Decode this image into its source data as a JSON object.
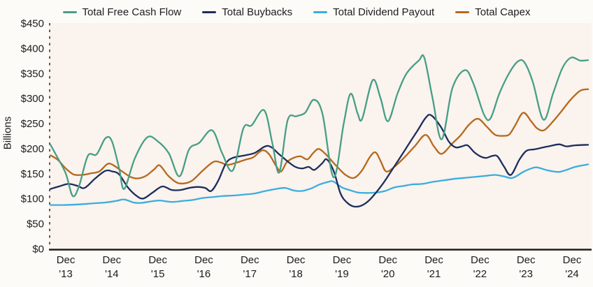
{
  "y_axis": {
    "title": "Billions",
    "tick_labels": [
      "$450",
      "$400",
      "$350",
      "$300",
      "$250",
      "$200",
      "$150",
      "$100",
      "$50",
      "$0"
    ],
    "tick_values": [
      450,
      400,
      350,
      300,
      250,
      200,
      150,
      100,
      50,
      0
    ]
  },
  "x_axis": {
    "tick_top": "Dec",
    "tick_years": [
      "'13",
      "'14",
      "'15",
      "'16",
      "'17",
      "'18",
      "'19",
      "'20",
      "'21",
      "'22",
      "'23",
      "'24"
    ],
    "tick_start_decimal_year": 2013.92,
    "tick_step_years": 1
  },
  "colors": {
    "plot_background": "#faf3ee",
    "axis": "#1c1c1c",
    "text": "#1c1c1c"
  },
  "chart_data": {
    "type": "line",
    "title": "",
    "xlabel": "",
    "ylabel": "Billions",
    "ylim": [
      0,
      450
    ],
    "x_range_decimal_years": [
      2013.57,
      2025.3
    ],
    "x_tick_labels": [
      "Dec '13",
      "Dec '14",
      "Dec '15",
      "Dec '16",
      "Dec '17",
      "Dec '18",
      "Dec '19",
      "Dec '20",
      "Dec '21",
      "Dec '22",
      "Dec '23",
      "Dec '24"
    ],
    "grid": false,
    "legend_position": "top",
    "units": "USD billions, quarterly",
    "series": [
      {
        "name": "Total Free Cash Flow",
        "color": "#479e86",
        "points": [
          [
            2013.59,
            207
          ],
          [
            2013.72,
            185
          ],
          [
            2013.92,
            150
          ],
          [
            2014.07,
            105
          ],
          [
            2014.21,
            125
          ],
          [
            2014.4,
            185
          ],
          [
            2014.59,
            188
          ],
          [
            2014.78,
            220
          ],
          [
            2014.92,
            215
          ],
          [
            2015.08,
            160
          ],
          [
            2015.19,
            119
          ],
          [
            2015.42,
            180
          ],
          [
            2015.69,
            222
          ],
          [
            2015.92,
            214
          ],
          [
            2016.16,
            190
          ],
          [
            2016.39,
            144
          ],
          [
            2016.6,
            198
          ],
          [
            2016.82,
            211
          ],
          [
            2017.1,
            236
          ],
          [
            2017.32,
            190
          ],
          [
            2017.55,
            156
          ],
          [
            2017.78,
            240
          ],
          [
            2017.96,
            246
          ],
          [
            2018.23,
            276
          ],
          [
            2018.41,
            210
          ],
          [
            2018.56,
            152
          ],
          [
            2018.74,
            256
          ],
          [
            2018.93,
            264
          ],
          [
            2019.12,
            271
          ],
          [
            2019.31,
            297
          ],
          [
            2019.5,
            268
          ],
          [
            2019.74,
            142
          ],
          [
            2019.96,
            250
          ],
          [
            2020.11,
            309
          ],
          [
            2020.26,
            270
          ],
          [
            2020.36,
            259
          ],
          [
            2020.59,
            336
          ],
          [
            2020.76,
            300
          ],
          [
            2020.92,
            254
          ],
          [
            2021.13,
            310
          ],
          [
            2021.33,
            350
          ],
          [
            2021.59,
            375
          ],
          [
            2021.71,
            381
          ],
          [
            2021.89,
            300
          ],
          [
            2022.09,
            218
          ],
          [
            2022.32,
            320
          ],
          [
            2022.59,
            356
          ],
          [
            2022.77,
            331
          ],
          [
            2023.01,
            267
          ],
          [
            2023.15,
            260
          ],
          [
            2023.34,
            309
          ],
          [
            2023.56,
            351
          ],
          [
            2023.75,
            374
          ],
          [
            2023.89,
            371
          ],
          [
            2024.07,
            332
          ],
          [
            2024.3,
            257
          ],
          [
            2024.51,
            310
          ],
          [
            2024.71,
            360
          ],
          [
            2024.9,
            381
          ],
          [
            2025.1,
            375
          ],
          [
            2025.27,
            376
          ]
        ]
      },
      {
        "name": "Total Buybacks",
        "color": "#1b2e5c",
        "points": [
          [
            2013.59,
            119
          ],
          [
            2013.77,
            124
          ],
          [
            2013.98,
            129
          ],
          [
            2014.18,
            125
          ],
          [
            2014.33,
            121
          ],
          [
            2014.56,
            140
          ],
          [
            2014.78,
            155
          ],
          [
            2014.93,
            154
          ],
          [
            2015.08,
            148
          ],
          [
            2015.27,
            122
          ],
          [
            2015.46,
            105
          ],
          [
            2015.61,
            100
          ],
          [
            2015.81,
            112
          ],
          [
            2016.02,
            124
          ],
          [
            2016.22,
            117
          ],
          [
            2016.42,
            117
          ],
          [
            2016.6,
            121
          ],
          [
            2016.79,
            123
          ],
          [
            2016.95,
            121
          ],
          [
            2017.08,
            115
          ],
          [
            2017.23,
            135
          ],
          [
            2017.4,
            170
          ],
          [
            2017.55,
            181
          ],
          [
            2017.81,
            186
          ],
          [
            2018.03,
            191
          ],
          [
            2018.31,
            205
          ],
          [
            2018.56,
            188
          ],
          [
            2018.74,
            174
          ],
          [
            2018.91,
            163
          ],
          [
            2019.06,
            160
          ],
          [
            2019.2,
            163
          ],
          [
            2019.32,
            157
          ],
          [
            2019.49,
            170
          ],
          [
            2019.59,
            178
          ],
          [
            2019.74,
            155
          ],
          [
            2019.89,
            110
          ],
          [
            2020.03,
            92
          ],
          [
            2020.18,
            84
          ],
          [
            2020.35,
            86
          ],
          [
            2020.53,
            98
          ],
          [
            2020.8,
            128
          ],
          [
            2021.06,
            164
          ],
          [
            2021.32,
            201
          ],
          [
            2021.56,
            235
          ],
          [
            2021.74,
            261
          ],
          [
            2021.86,
            266
          ],
          [
            2022.07,
            243
          ],
          [
            2022.24,
            214
          ],
          [
            2022.39,
            202
          ],
          [
            2022.53,
            204
          ],
          [
            2022.65,
            206
          ],
          [
            2022.8,
            192
          ],
          [
            2022.95,
            183
          ],
          [
            2023.06,
            181
          ],
          [
            2023.19,
            185
          ],
          [
            2023.3,
            184
          ],
          [
            2023.44,
            164
          ],
          [
            2023.59,
            147
          ],
          [
            2023.78,
            178
          ],
          [
            2023.93,
            195
          ],
          [
            2024.1,
            198
          ],
          [
            2024.25,
            201
          ],
          [
            2024.46,
            205
          ],
          [
            2024.64,
            208
          ],
          [
            2024.8,
            204
          ],
          [
            2024.99,
            206
          ],
          [
            2025.27,
            207
          ]
        ]
      },
      {
        "name": "Total Dividend Payout",
        "color": "#3badde",
        "points": [
          [
            2013.59,
            87
          ],
          [
            2013.87,
            87
          ],
          [
            2014.18,
            88
          ],
          [
            2014.48,
            90
          ],
          [
            2014.78,
            92
          ],
          [
            2015.01,
            95
          ],
          [
            2015.19,
            98
          ],
          [
            2015.39,
            92
          ],
          [
            2015.54,
            91
          ],
          [
            2015.77,
            94
          ],
          [
            2015.96,
            96
          ],
          [
            2016.22,
            93
          ],
          [
            2016.45,
            95
          ],
          [
            2016.67,
            97
          ],
          [
            2016.9,
            101
          ],
          [
            2017.13,
            103
          ],
          [
            2017.35,
            105
          ],
          [
            2017.58,
            106
          ],
          [
            2017.81,
            108
          ],
          [
            2018.03,
            110
          ],
          [
            2018.26,
            115
          ],
          [
            2018.49,
            119
          ],
          [
            2018.69,
            121
          ],
          [
            2018.87,
            116
          ],
          [
            2019.05,
            115
          ],
          [
            2019.25,
            120
          ],
          [
            2019.44,
            128
          ],
          [
            2019.62,
            133
          ],
          [
            2019.73,
            134
          ],
          [
            2019.92,
            122
          ],
          [
            2020.08,
            117
          ],
          [
            2020.26,
            112
          ],
          [
            2020.45,
            111
          ],
          [
            2020.68,
            112
          ],
          [
            2020.86,
            115
          ],
          [
            2021.06,
            122
          ],
          [
            2021.26,
            125
          ],
          [
            2021.44,
            128
          ],
          [
            2021.66,
            129
          ],
          [
            2021.89,
            133
          ],
          [
            2022.12,
            136
          ],
          [
            2022.35,
            139
          ],
          [
            2022.57,
            141
          ],
          [
            2022.8,
            143
          ],
          [
            2023.03,
            145
          ],
          [
            2023.25,
            147
          ],
          [
            2023.44,
            144
          ],
          [
            2023.63,
            141
          ],
          [
            2023.86,
            153
          ],
          [
            2024.04,
            160
          ],
          [
            2024.16,
            162
          ],
          [
            2024.39,
            156
          ],
          [
            2024.62,
            153
          ],
          [
            2024.8,
            157
          ],
          [
            2024.99,
            163
          ],
          [
            2025.27,
            168
          ]
        ]
      },
      {
        "name": "Total Capex",
        "color": "#b5691c",
        "points": [
          [
            2013.59,
            186
          ],
          [
            2013.75,
            177
          ],
          [
            2013.92,
            160
          ],
          [
            2014.09,
            148
          ],
          [
            2014.27,
            147
          ],
          [
            2014.46,
            150
          ],
          [
            2014.65,
            154
          ],
          [
            2014.83,
            169
          ],
          [
            2014.96,
            166
          ],
          [
            2015.16,
            153
          ],
          [
            2015.33,
            143
          ],
          [
            2015.48,
            140
          ],
          [
            2015.66,
            145
          ],
          [
            2015.84,
            158
          ],
          [
            2015.96,
            166
          ],
          [
            2016.14,
            146
          ],
          [
            2016.33,
            132
          ],
          [
            2016.49,
            130
          ],
          [
            2016.67,
            136
          ],
          [
            2016.9,
            156
          ],
          [
            2017.13,
            173
          ],
          [
            2017.28,
            172
          ],
          [
            2017.43,
            167
          ],
          [
            2017.61,
            171
          ],
          [
            2017.81,
            177
          ],
          [
            2017.99,
            182
          ],
          [
            2018.19,
            196
          ],
          [
            2018.34,
            188
          ],
          [
            2018.49,
            165
          ],
          [
            2018.6,
            154
          ],
          [
            2018.72,
            172
          ],
          [
            2018.87,
            181
          ],
          [
            2019.02,
            184
          ],
          [
            2019.17,
            178
          ],
          [
            2019.29,
            190
          ],
          [
            2019.41,
            199
          ],
          [
            2019.55,
            190
          ],
          [
            2019.67,
            178
          ],
          [
            2019.82,
            163
          ],
          [
            2020.0,
            147
          ],
          [
            2020.18,
            141
          ],
          [
            2020.35,
            155
          ],
          [
            2020.53,
            183
          ],
          [
            2020.65,
            192
          ],
          [
            2020.76,
            175
          ],
          [
            2020.88,
            154
          ],
          [
            2021.06,
            163
          ],
          [
            2021.29,
            183
          ],
          [
            2021.51,
            205
          ],
          [
            2021.74,
            227
          ],
          [
            2021.92,
            204
          ],
          [
            2022.09,
            189
          ],
          [
            2022.32,
            210
          ],
          [
            2022.5,
            226
          ],
          [
            2022.69,
            248
          ],
          [
            2022.88,
            259
          ],
          [
            2023.07,
            243
          ],
          [
            2023.25,
            227
          ],
          [
            2023.44,
            225
          ],
          [
            2023.56,
            228
          ],
          [
            2023.68,
            245
          ],
          [
            2023.86,
            271
          ],
          [
            2024.04,
            253
          ],
          [
            2024.16,
            240
          ],
          [
            2024.31,
            236
          ],
          [
            2024.49,
            252
          ],
          [
            2024.69,
            274
          ],
          [
            2024.89,
            297
          ],
          [
            2025.1,
            315
          ],
          [
            2025.27,
            318
          ]
        ]
      }
    ]
  }
}
